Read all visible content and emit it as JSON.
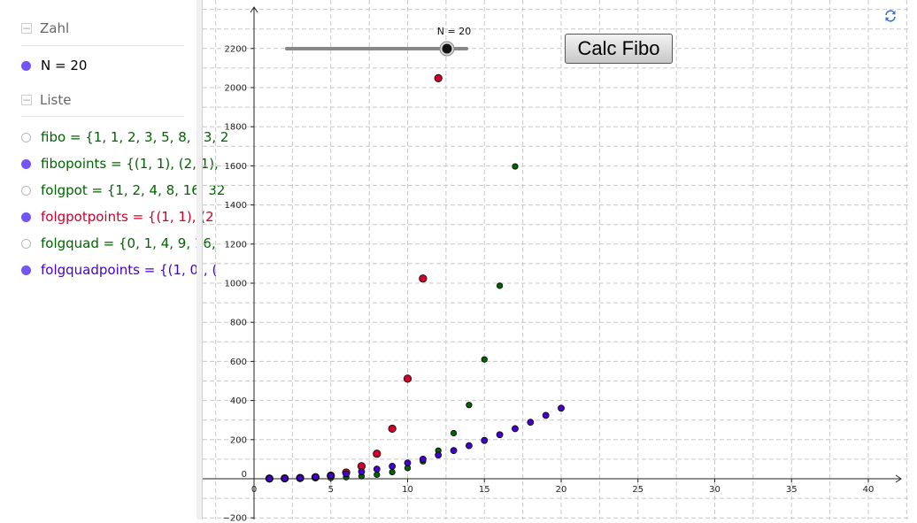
{
  "algebra": {
    "categories": {
      "zahl": "Zahl",
      "liste": "Liste"
    },
    "zahl_items": [
      {
        "text": "N = 20",
        "color": "#000000",
        "visible": true
      }
    ],
    "liste_items": [
      {
        "text": "fibo = {1, 1, 2, 3, 5, 8, 13, 2",
        "color": "#006400",
        "visible": false
      },
      {
        "text": "fibopoints = {(1, 1), (2, 1),",
        "color": "#006400",
        "visible": true
      },
      {
        "text": "folgpot = {1, 2, 4, 8, 16, 32",
        "color": "#006400",
        "visible": false
      },
      {
        "text": "folgpotpoints = {(1, 1), (2",
        "color": "#d0002a",
        "visible": true
      },
      {
        "text": "folgquad = {0, 1, 4, 9, 16,",
        "color": "#006400",
        "visible": false
      },
      {
        "text": "folgquadpoints = {(1, 0), (",
        "color": "#4400cc",
        "visible": true
      }
    ]
  },
  "slider": {
    "label": "N = 20",
    "value": 20,
    "min": 1,
    "max": 20
  },
  "button_label": "Calc Fibo",
  "icons": {
    "refresh": "refresh-icon",
    "collapse": "minus-box-icon"
  },
  "chart_data": {
    "type": "scatter",
    "xlim": [
      -3,
      42
    ],
    "ylim": [
      -200,
      2400
    ],
    "x_ticks": [
      0,
      5,
      10,
      15,
      20,
      25,
      30,
      35,
      40
    ],
    "y_ticks": [
      -200,
      0,
      200,
      400,
      600,
      800,
      1000,
      1200,
      1400,
      1600,
      1800,
      2000,
      2200
    ],
    "x_tick_labels": [
      "0",
      "5",
      "10",
      "15",
      "20",
      "25",
      "30",
      "35",
      "40"
    ],
    "y_tick_labels": [
      "−200",
      "0",
      "200",
      "400",
      "600",
      "800",
      "1000",
      "1200",
      "1400",
      "1600",
      "1800",
      "2000",
      "2200"
    ],
    "grid": true,
    "series": [
      {
        "name": "folgpotpoints",
        "color": "#d0002a",
        "points": [
          [
            1,
            1
          ],
          [
            2,
            2
          ],
          [
            3,
            4
          ],
          [
            4,
            8
          ],
          [
            5,
            16
          ],
          [
            6,
            32
          ],
          [
            7,
            64
          ],
          [
            8,
            128
          ],
          [
            9,
            256
          ],
          [
            10,
            512
          ],
          [
            11,
            1024
          ],
          [
            12,
            2048
          ]
        ]
      },
      {
        "name": "fibopoints",
        "color": "#006400",
        "points": [
          [
            1,
            1
          ],
          [
            2,
            1
          ],
          [
            3,
            2
          ],
          [
            4,
            3
          ],
          [
            5,
            5
          ],
          [
            6,
            8
          ],
          [
            7,
            13
          ],
          [
            8,
            21
          ],
          [
            9,
            34
          ],
          [
            10,
            55
          ],
          [
            11,
            89
          ],
          [
            12,
            144
          ],
          [
            13,
            233
          ],
          [
            14,
            377
          ],
          [
            15,
            610
          ],
          [
            16,
            987
          ],
          [
            17,
            1597
          ]
        ]
      },
      {
        "name": "folgquadpoints",
        "color": "#4400cc",
        "points": [
          [
            1,
            0
          ],
          [
            2,
            1
          ],
          [
            3,
            4
          ],
          [
            4,
            9
          ],
          [
            5,
            16
          ],
          [
            6,
            25
          ],
          [
            7,
            36
          ],
          [
            8,
            49
          ],
          [
            9,
            64
          ],
          [
            10,
            81
          ],
          [
            11,
            100
          ],
          [
            12,
            121
          ],
          [
            13,
            144
          ],
          [
            14,
            169
          ],
          [
            15,
            196
          ],
          [
            16,
            225
          ],
          [
            17,
            256
          ],
          [
            18,
            289
          ],
          [
            19,
            324
          ],
          [
            20,
            361
          ]
        ]
      }
    ]
  }
}
